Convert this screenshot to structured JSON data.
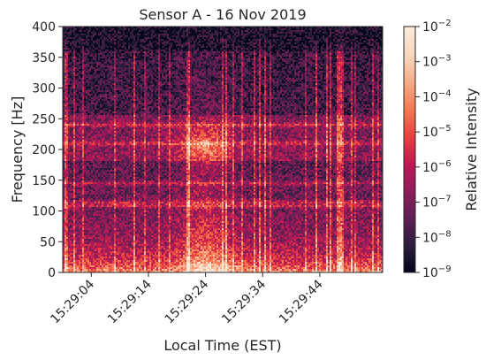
{
  "chart_data": {
    "type": "heatmap",
    "title": "Sensor A - 16 Nov 2019",
    "xlabel": "Local Time (EST)",
    "ylabel": "Frequency [Hz]",
    "x_range": [
      "15:28:59",
      "15:29:55"
    ],
    "x_ticks": [
      "15:29:04",
      "15:29:14",
      "15:29:24",
      "15:29:34",
      "15:29:44"
    ],
    "ylim": [
      0,
      400
    ],
    "y_ticks": [
      0,
      50,
      100,
      150,
      200,
      250,
      300,
      350,
      400
    ],
    "colorbar": {
      "label": "Relative Intensity",
      "scale": "log",
      "range": [
        1e-09,
        0.01
      ],
      "ticks": [
        {
          "base": "10",
          "exp": "−2"
        },
        {
          "base": "10",
          "exp": "−3"
        },
        {
          "base": "10",
          "exp": "−4"
        },
        {
          "base": "10",
          "exp": "−5"
        },
        {
          "base": "10",
          "exp": "−6"
        },
        {
          "base": "10",
          "exp": "−7"
        },
        {
          "base": "10",
          "exp": "−8"
        },
        {
          "base": "10",
          "exp": "−9"
        }
      ],
      "colormap": [
        "#03051a",
        "#2c1e3d",
        "#5e1f52",
        "#8e1d5b",
        "#c21753",
        "#e83f3f",
        "#f6774f",
        "#f7aa84",
        "#f9d6bd",
        "#faebdd"
      ]
    },
    "features": {
      "broadband_burst_times": [
        "15:29:24"
      ],
      "horizontal_band_frequencies_hz": [
        108,
        114,
        145,
        210,
        240
      ],
      "grid": false,
      "legend": "none"
    }
  }
}
